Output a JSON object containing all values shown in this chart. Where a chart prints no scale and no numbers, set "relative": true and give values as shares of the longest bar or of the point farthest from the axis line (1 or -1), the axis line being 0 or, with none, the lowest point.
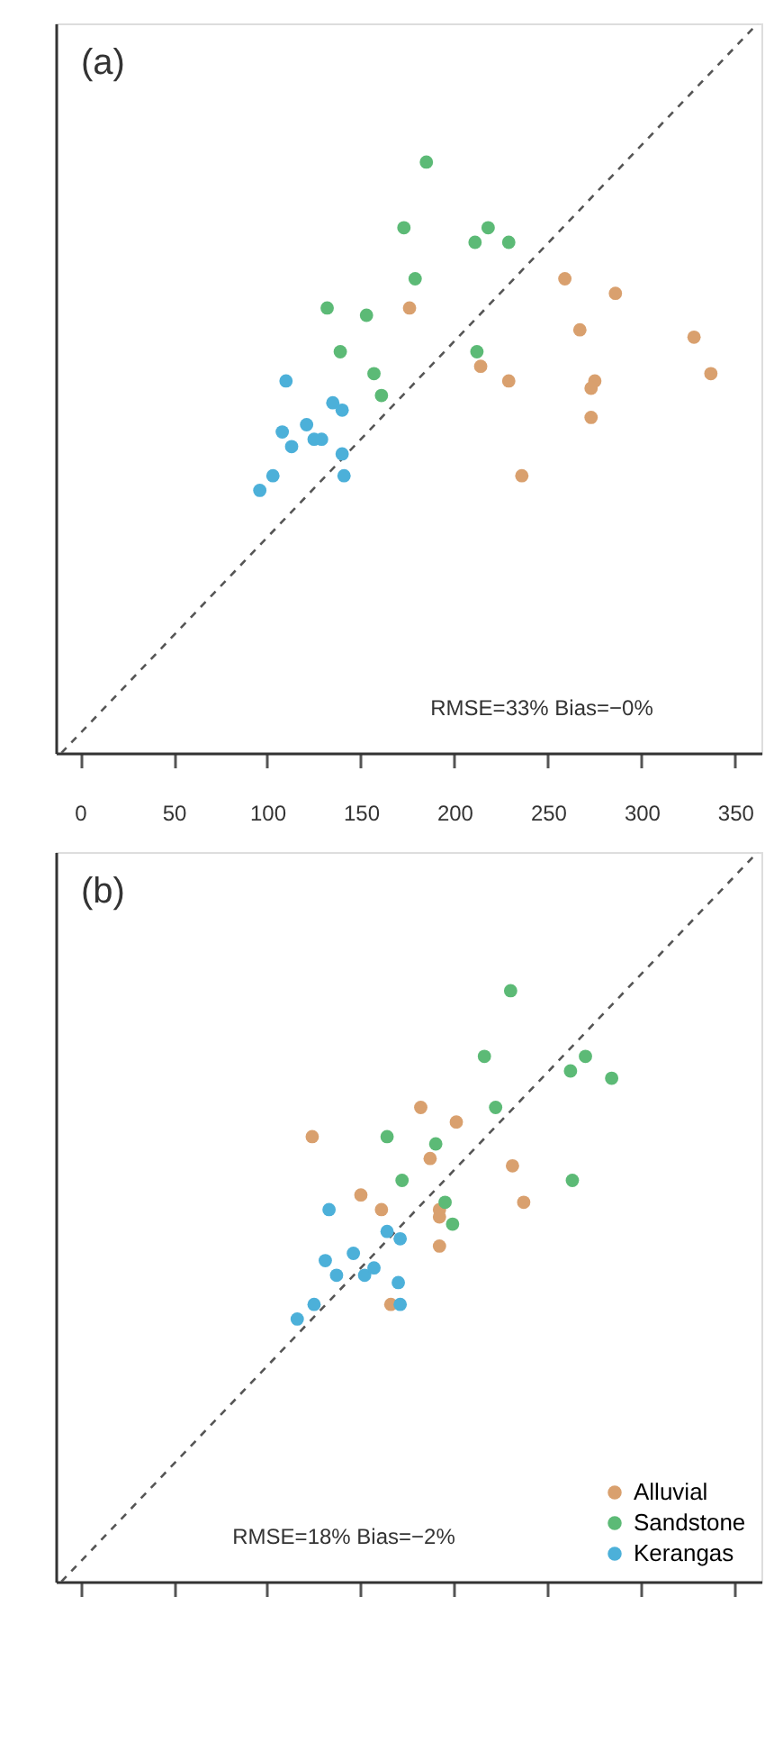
{
  "chart_data": [
    {
      "type": "scatter",
      "relative": true,
      "annotations": [
        "(a)",
        "RMSE=33% Bias=−0%"
      ],
      "xlim": [
        -13,
        364
      ],
      "xticks": [
        0,
        50,
        100,
        150,
        200,
        250,
        300,
        350
      ],
      "tick_labels": "x",
      "legend": false,
      "marker": "circle",
      "grid": false,
      "series": [
        {
          "color": "#d9a06e",
          "x": [
            176,
            259,
            286,
            267,
            328,
            214,
            229,
            275,
            273,
            337,
            273,
            236
          ],
          "values": [
            0.61,
            0.65,
            0.63,
            0.58,
            0.57,
            0.53,
            0.51,
            0.51,
            0.5,
            0.52,
            0.46,
            0.38
          ]
        },
        {
          "color": "#5cba76",
          "x": [
            185,
            173,
            211,
            218,
            229,
            179,
            132,
            153,
            139,
            212,
            157,
            161
          ],
          "values": [
            0.81,
            0.72,
            0.7,
            0.72,
            0.7,
            0.65,
            0.61,
            0.6,
            0.55,
            0.55,
            0.52,
            0.49
          ]
        },
        {
          "color": "#4cb0d9",
          "x": [
            110,
            121,
            135,
            140,
            108,
            113,
            125,
            129,
            140,
            103,
            96,
            141
          ],
          "values": [
            0.51,
            0.45,
            0.48,
            0.47,
            0.44,
            0.42,
            0.43,
            0.43,
            0.41,
            0.38,
            0.36,
            0.38
          ]
        },
        {
          "type": "line",
          "line_style": "dashed",
          "marker": "none",
          "color": "#555555",
          "x": [
            -10,
            362
          ],
          "values": [
            0,
            1
          ]
        }
      ]
    },
    {
      "type": "scatter",
      "relative": true,
      "annotations": [
        "(b)",
        "RMSE=18% Bias=−2%"
      ],
      "xlim": [
        -13,
        364
      ],
      "xticks": [
        0,
        50,
        100,
        150,
        200,
        250,
        300,
        350
      ],
      "tick_labels": false,
      "legend": "bottom right",
      "marker": "circle",
      "grid": false,
      "series": [
        {
          "name": "Alluvial",
          "color": "#d9a06e",
          "x": [
            124,
            182,
            201,
            187,
            231,
            150,
            161,
            237,
            192,
            192,
            192,
            166
          ],
          "values": [
            0.61,
            0.65,
            0.63,
            0.58,
            0.57,
            0.53,
            0.51,
            0.52,
            0.51,
            0.5,
            0.46,
            0.38
          ]
        },
        {
          "name": "Sandstone",
          "color": "#5cba76",
          "x": [
            230,
            216,
            262,
            270,
            284,
            222,
            164,
            190,
            172,
            263,
            195,
            199
          ],
          "values": [
            0.81,
            0.72,
            0.7,
            0.72,
            0.69,
            0.65,
            0.61,
            0.6,
            0.55,
            0.55,
            0.52,
            0.49
          ]
        },
        {
          "name": "Kerangas",
          "color": "#4cb0d9",
          "x": [
            133,
            146,
            164,
            171,
            131,
            137,
            152,
            157,
            170,
            125,
            116,
            171
          ],
          "values": [
            0.51,
            0.45,
            0.48,
            0.47,
            0.44,
            0.42,
            0.42,
            0.43,
            0.41,
            0.38,
            0.36,
            0.38
          ]
        },
        {
          "type": "line",
          "line_style": "dashed",
          "marker": "none",
          "color": "#555555",
          "x": [
            -10,
            362
          ],
          "values": [
            0,
            1
          ]
        }
      ]
    }
  ]
}
